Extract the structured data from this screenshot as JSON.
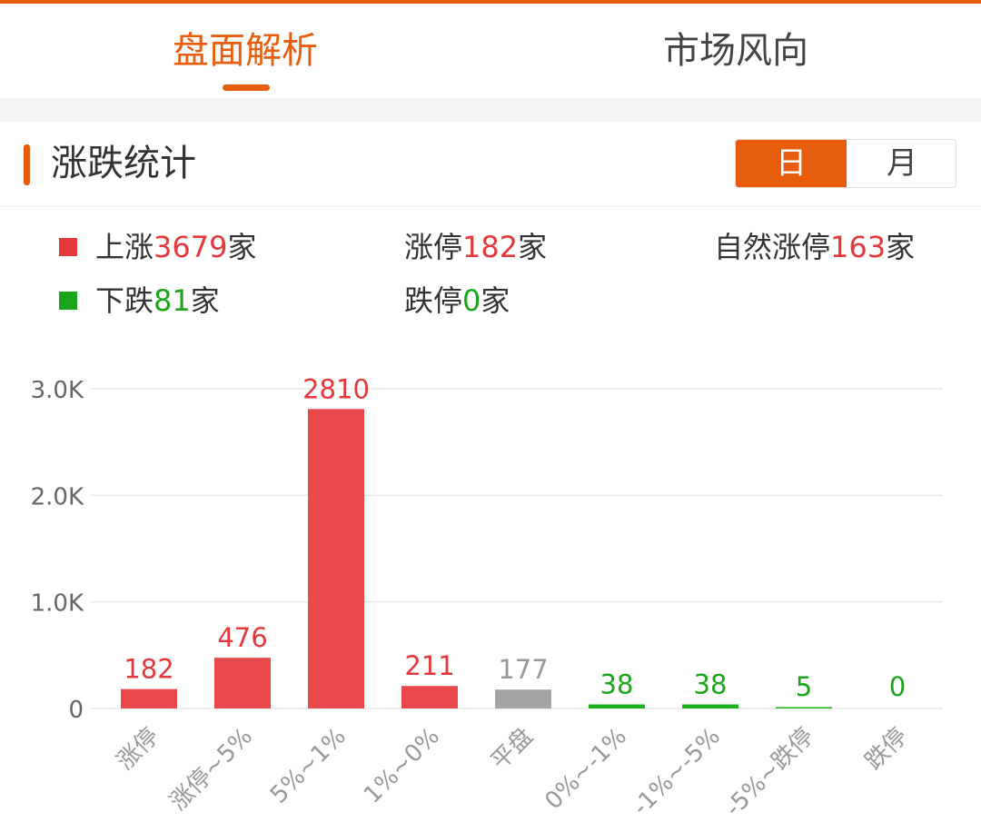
{
  "colors": {
    "accent": "#e85c0d",
    "rise": "#e8494b",
    "rise_text": "#e5383b",
    "fall": "#1db11d",
    "fall_text": "#1aa51a",
    "flat": "#a4a4a4",
    "label_gray": "#999999"
  },
  "tabs": [
    {
      "label": "盘面解析",
      "active": true
    },
    {
      "label": "市场风向",
      "active": false
    }
  ],
  "section": {
    "title": "涨跌统计",
    "toggle": [
      {
        "label": "日",
        "active": true
      },
      {
        "label": "月",
        "active": false
      }
    ]
  },
  "stats": {
    "rise": {
      "prefix": "上涨",
      "value": "3679",
      "suffix": "家"
    },
    "limit_up": {
      "prefix": "涨停",
      "value": "182",
      "suffix": "家"
    },
    "natural_limit_up": {
      "prefix": "自然涨停",
      "value": "163",
      "suffix": "家"
    },
    "fall": {
      "prefix": "下跌",
      "value": "81",
      "suffix": "家"
    },
    "limit_down": {
      "prefix": "跌停",
      "value": "0",
      "suffix": "家"
    }
  },
  "chart_data": {
    "type": "bar",
    "categories": [
      "涨停",
      "涨停~5%",
      "5%~1%",
      "1%~0%",
      "平盘",
      "0%~-1%",
      "-1%~-5%",
      "-5%~跌停",
      "跌停"
    ],
    "values": [
      182,
      476,
      2810,
      211,
      177,
      38,
      38,
      5,
      0
    ],
    "bar_colors": [
      "rise",
      "rise",
      "rise",
      "rise",
      "flat",
      "fall",
      "fall",
      "fall",
      "fall"
    ],
    "label_colors": [
      "rise_text",
      "rise_text",
      "rise_text",
      "rise_text",
      "label_gray",
      "fall_text",
      "fall_text",
      "fall_text",
      "fall_text"
    ],
    "ylim": [
      0,
      3000
    ],
    "yticks": [
      {
        "value": 0,
        "label": "0"
      },
      {
        "value": 1000,
        "label": "1.0K"
      },
      {
        "value": 2000,
        "label": "2.0K"
      },
      {
        "value": 3000,
        "label": "3.0K"
      }
    ],
    "grid": true,
    "title": "",
    "xlabel": "",
    "ylabel": ""
  }
}
